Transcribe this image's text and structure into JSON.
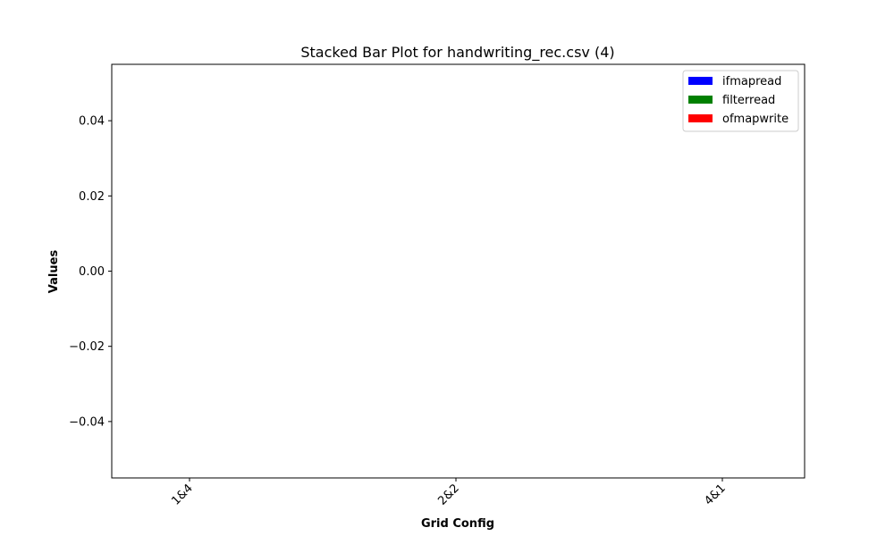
{
  "chart_data": {
    "type": "bar",
    "stacked": true,
    "title": "Stacked Bar Plot for handwriting_rec.csv (4)",
    "xlabel": "Grid Config",
    "ylabel": "Values",
    "categories": [
      "1&4",
      "2&2",
      "4&1"
    ],
    "series": [
      {
        "name": "ifmapread",
        "color": "#0000ff",
        "values": [
          0,
          0,
          0
        ]
      },
      {
        "name": "filterread",
        "color": "#008000",
        "values": [
          0,
          0,
          0
        ]
      },
      {
        "name": "ofmapwrite",
        "color": "#ff0000",
        "values": [
          0,
          0,
          0
        ]
      }
    ],
    "ylim": [
      -0.055,
      0.055
    ],
    "yticks": [
      -0.04,
      -0.02,
      0.0,
      0.02,
      0.04
    ],
    "ytick_labels": [
      "−0.04",
      "−0.02",
      "0.00",
      "0.02",
      "0.04"
    ],
    "legend": "top-right",
    "grid": false
  }
}
